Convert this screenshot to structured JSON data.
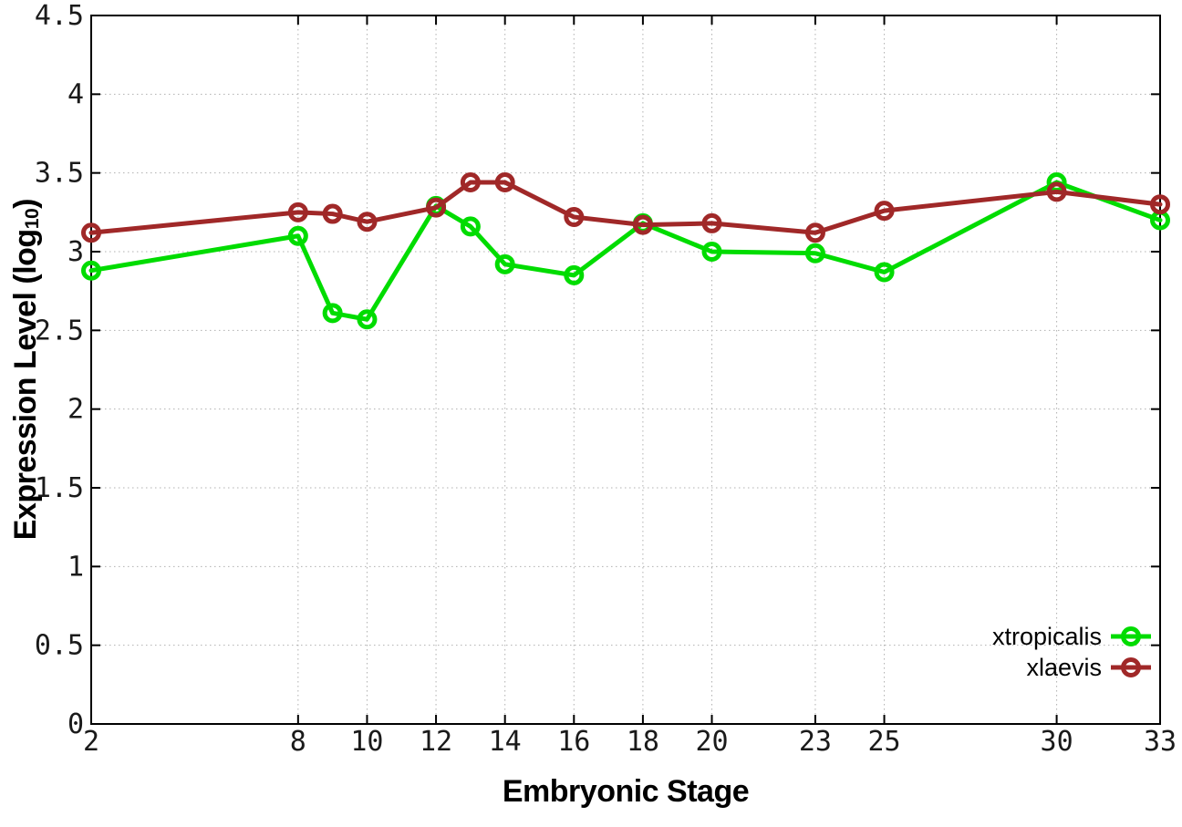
{
  "chart_data": {
    "type": "line",
    "title": "",
    "xlabel": "Embryonic Stage",
    "ylabel": "Expression Level (log10)",
    "ylabel_parts": {
      "pre": "Expression Level (log",
      "sub": "10",
      "post": ")"
    },
    "xlim": [
      2,
      33
    ],
    "ylim": [
      0,
      4.5
    ],
    "x": [
      2,
      8,
      9,
      10,
      12,
      13,
      14,
      16,
      18,
      20,
      23,
      25,
      30,
      33
    ],
    "xtick_values": [
      2,
      8,
      10,
      12,
      14,
      16,
      18,
      20,
      23,
      25,
      30,
      33
    ],
    "xtick_labels": [
      "2",
      "8",
      "10",
      "12",
      "14",
      "16",
      "18",
      "20",
      "23",
      "25",
      "30",
      "33"
    ],
    "ytick_values": [
      0,
      0.5,
      1,
      1.5,
      2,
      2.5,
      3,
      3.5,
      4,
      4.5
    ],
    "ytick_labels": [
      "0",
      "0.5",
      "1",
      "1.5",
      "2",
      "2.5",
      "3",
      "3.5",
      "4",
      "4.5"
    ],
    "grid": true,
    "legend_position": "bottom-right",
    "marker": "open-circle",
    "series": [
      {
        "name": "xtropicalis",
        "color": "#00dc00",
        "values": [
          2.88,
          3.1,
          2.61,
          2.57,
          3.29,
          3.16,
          2.92,
          2.85,
          3.18,
          3.0,
          2.99,
          2.87,
          3.44,
          3.2
        ]
      },
      {
        "name": "xlaevis",
        "color": "#a02828",
        "values": [
          3.12,
          3.25,
          3.24,
          3.19,
          3.28,
          3.44,
          3.44,
          3.22,
          3.17,
          3.18,
          3.12,
          3.26,
          3.38,
          3.3
        ]
      }
    ],
    "colors": {
      "grid": "#b0b0b0",
      "axis": "#000000",
      "text": "#000000"
    }
  }
}
